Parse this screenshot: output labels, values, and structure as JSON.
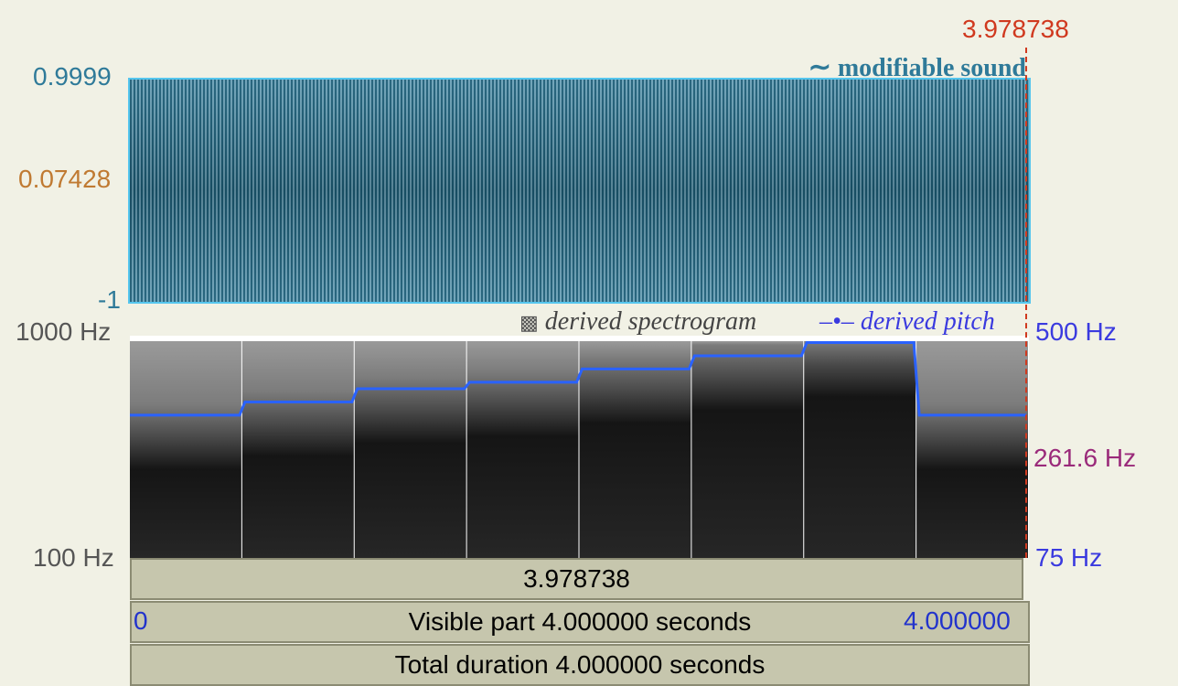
{
  "cursor": {
    "time_label": "3.978738"
  },
  "sound": {
    "title": "modifiable sound",
    "title_icon": "tilde-glyph",
    "amplitude_max": "0.9999",
    "amplitude_mid": "0.07428",
    "amplitude_min": "-1"
  },
  "spectrogram": {
    "legend": "derived spectrogram",
    "legend_icon": "checker-square-icon",
    "freq_top": "1000 Hz",
    "freq_bottom": "100 Hz",
    "band_count": 8
  },
  "pitch": {
    "legend": "derived pitch",
    "legend_icon": "dash-dot-line-icon",
    "top": "500 Hz",
    "reference": "261.6 Hz",
    "bottom": "75 Hz",
    "line_color": "#2a62ff",
    "steps_hz": [
      261.6,
      293.7,
      329.6,
      349.2,
      392.0,
      440.0,
      493.9,
      261.6
    ]
  },
  "time_bars": {
    "selection": "3.978738",
    "visible_start": "0",
    "visible_label": "Visible part 4.000000 seconds",
    "visible_end": "4.000000",
    "total_label": "Total duration 4.000000 seconds"
  },
  "colors": {
    "background": "#f1f1e5",
    "wave": "#1d5e78",
    "wave_border": "#55c6ee",
    "cursor": "#d0391f",
    "bar": "#c6c6ad"
  }
}
